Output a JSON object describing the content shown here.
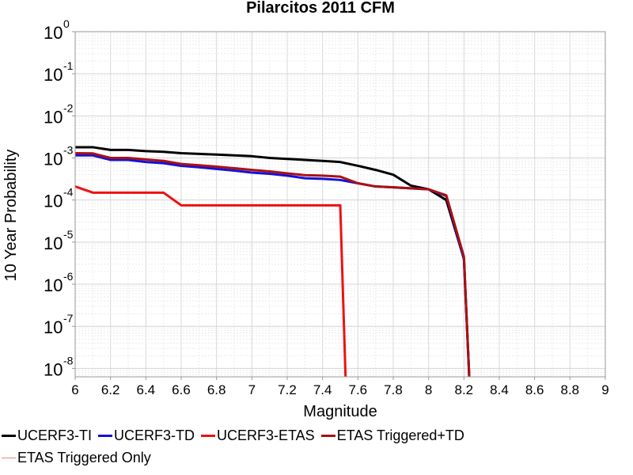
{
  "chart_data": {
    "type": "line",
    "title": "Pilarcitos 2011 CFM",
    "xlabel": "Magnitude",
    "ylabel": "10 Year Probability",
    "xlim": [
      6,
      9
    ],
    "ylim_log10": [
      -8.2,
      0
    ],
    "y_scale": "log",
    "grid": true,
    "legend_position": "bottom",
    "x_ticks": [
      "6",
      "6.2",
      "6.4",
      "6.6",
      "6.8",
      "7",
      "7.2",
      "7.4",
      "7.6",
      "7.8",
      "8",
      "8.2",
      "8.4",
      "8.6",
      "8.8",
      "9"
    ],
    "y_ticks": [
      {
        "base": "10",
        "exp": "0",
        "log": 0
      },
      {
        "base": "10",
        "exp": "-1",
        "log": -1
      },
      {
        "base": "10",
        "exp": "-2",
        "log": -2
      },
      {
        "base": "10",
        "exp": "-3",
        "log": -3
      },
      {
        "base": "10",
        "exp": "-4",
        "log": -4
      },
      {
        "base": "10",
        "exp": "-5",
        "log": -5
      },
      {
        "base": "10",
        "exp": "-6",
        "log": -6
      },
      {
        "base": "10",
        "exp": "-7",
        "log": -7
      },
      {
        "base": "10",
        "exp": "-8",
        "log": -8
      }
    ],
    "series": [
      {
        "name": "UCERF3-TI",
        "color": "#000000",
        "width": 3,
        "x": [
          6.0,
          6.1,
          6.2,
          6.3,
          6.4,
          6.5,
          6.6,
          6.7,
          6.8,
          6.9,
          7.0,
          7.1,
          7.2,
          7.3,
          7.4,
          7.5,
          7.6,
          7.7,
          7.8,
          7.9,
          8.0,
          8.1,
          8.2,
          8.23
        ],
        "y": [
          0.0018,
          0.0018,
          0.00155,
          0.00155,
          0.00145,
          0.0014,
          0.0013,
          0.00125,
          0.0012,
          0.00115,
          0.0011,
          0.001,
          0.00095,
          0.0009,
          0.00085,
          0.0008,
          0.00065,
          0.00052,
          0.0004,
          0.00022,
          0.00018,
          0.0001,
          4e-06,
          6.3e-09
        ]
      },
      {
        "name": "UCERF3-TD",
        "color": "#1111dd",
        "width": 3,
        "x": [
          6.0,
          6.1,
          6.2,
          6.3,
          6.4,
          6.5,
          6.6,
          6.7,
          6.8,
          6.9,
          7.0,
          7.1,
          7.2,
          7.3,
          7.4,
          7.5,
          7.6,
          7.7,
          7.8,
          7.9,
          8.0,
          8.1,
          8.2,
          8.23
        ],
        "y": [
          0.00115,
          0.00115,
          0.0009,
          0.0009,
          0.0008,
          0.00075,
          0.00065,
          0.0006,
          0.00055,
          0.0005,
          0.00045,
          0.00042,
          0.00038,
          0.00033,
          0.00032,
          0.0003,
          0.00025,
          0.00021,
          0.0002,
          0.00019,
          0.00018,
          0.000125,
          4e-06,
          6.3e-09
        ]
      },
      {
        "name": "UCERF3-ETAS",
        "color": "#ee1111",
        "width": 3,
        "x": [
          6.0,
          6.1,
          6.2,
          6.3,
          6.4,
          6.5,
          6.6,
          6.7,
          6.8,
          6.9,
          7.0,
          7.1,
          7.2,
          7.3,
          7.4,
          7.5,
          7.53
        ],
        "y": [
          0.00021,
          0.00015,
          0.00015,
          0.00015,
          0.00015,
          0.00015,
          7.5e-05,
          7.5e-05,
          7.5e-05,
          7.5e-05,
          7.5e-05,
          7.5e-05,
          7.5e-05,
          7.5e-05,
          7.5e-05,
          7.5e-05,
          6.3e-09
        ]
      },
      {
        "name": "ETAS Triggered+TD",
        "color": "#aa1111",
        "width": 3,
        "x": [
          6.0,
          6.1,
          6.2,
          6.3,
          6.4,
          6.5,
          6.6,
          6.7,
          6.8,
          6.9,
          7.0,
          7.1,
          7.2,
          7.3,
          7.4,
          7.5,
          7.6,
          7.7,
          7.8,
          7.9,
          8.0,
          8.1,
          8.2,
          8.23
        ],
        "y": [
          0.0013,
          0.00128,
          0.001,
          0.001,
          0.00092,
          0.00085,
          0.00072,
          0.00067,
          0.00062,
          0.00057,
          0.00052,
          0.00048,
          0.00043,
          0.00039,
          0.00038,
          0.00036,
          0.00025,
          0.00021,
          0.0002,
          0.00019,
          0.00018,
          0.00013,
          4.5e-06,
          6.3e-09
        ]
      },
      {
        "name": "ETAS Triggered Only",
        "color": "#f08080",
        "width": 1,
        "x": [],
        "y": []
      }
    ]
  }
}
